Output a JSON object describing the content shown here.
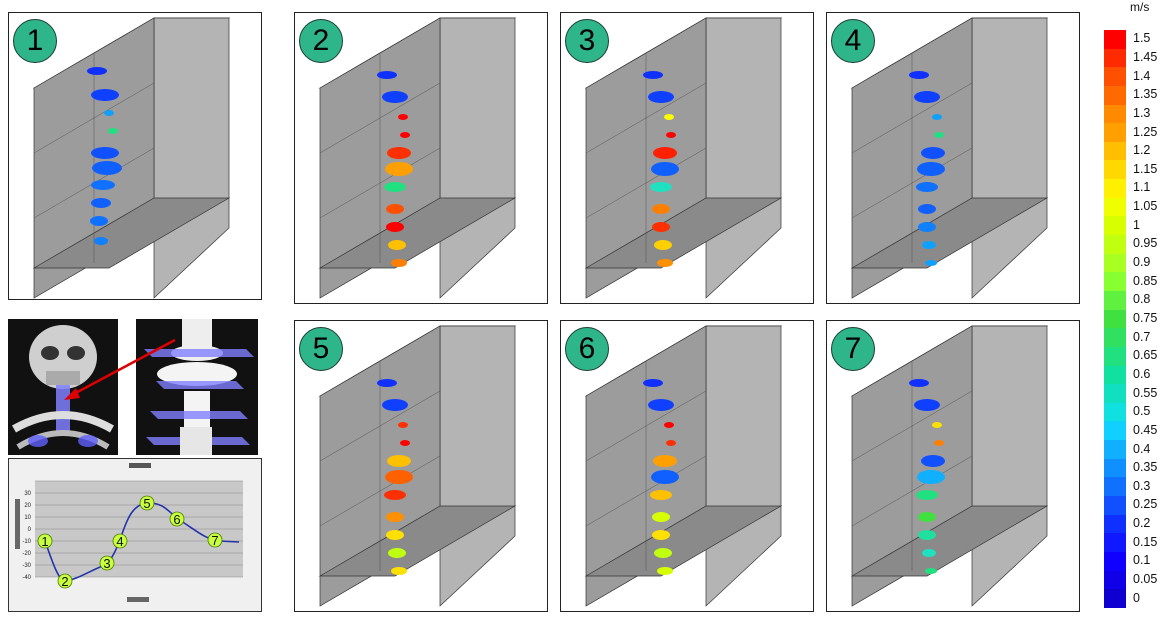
{
  "panels": [
    {
      "number": "1"
    },
    {
      "number": "2"
    },
    {
      "number": "3"
    },
    {
      "number": "4"
    },
    {
      "number": "5"
    },
    {
      "number": "6"
    },
    {
      "number": "7"
    }
  ],
  "colorbar": {
    "unit": "m/s",
    "ticks": [
      "1.5",
      "1.45",
      "1.4",
      "1.35",
      "1.3",
      "1.25",
      "1.2",
      "1.15",
      "1.1",
      "1.05",
      "1",
      "0.95",
      "0.9",
      "0.85",
      "0.8",
      "0.75",
      "0.7",
      "0.65",
      "0.6",
      "0.55",
      "0.5",
      "0.45",
      "0.4",
      "0.35",
      "0.3",
      "0.25",
      "0.2",
      "0.15",
      "0.1",
      "0.05",
      "0"
    ],
    "colors": [
      "#ff0000",
      "#ff2a00",
      "#ff5000",
      "#ff6a00",
      "#ff8a00",
      "#ffa000",
      "#ffbe00",
      "#ffd800",
      "#fff000",
      "#f0ff00",
      "#d8ff00",
      "#c0ff10",
      "#a8ff20",
      "#88ff30",
      "#60f040",
      "#40e040",
      "#30e060",
      "#20e080",
      "#10e0a0",
      "#10e0c0",
      "#10e0e0",
      "#10d0ff",
      "#10b0ff",
      "#1090ff",
      "#1070ff",
      "#1050ff",
      "#1030ff",
      "#1018ff",
      "#1000ff",
      "#1000e8",
      "#1000d0"
    ]
  },
  "waveform": {
    "y_ticks": [
      "30",
      "20",
      "10",
      "0",
      "-10",
      "-20",
      "-30",
      "-40"
    ],
    "points": [
      "1",
      "2",
      "3",
      "4",
      "5",
      "6",
      "7"
    ]
  }
}
